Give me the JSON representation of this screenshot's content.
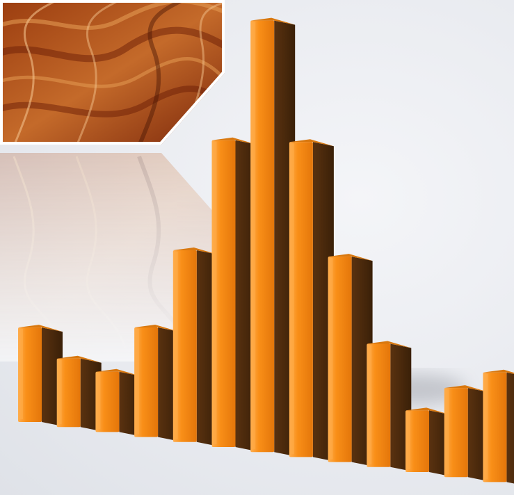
{
  "chart_data": {
    "type": "bar",
    "values": [
      138,
      100,
      88,
      160,
      280,
      448,
      630,
      460,
      300,
      180,
      90,
      130,
      160
    ],
    "colors": {
      "front": "#f58a12",
      "side": "#4a2a0c",
      "top": "#d9780f",
      "highlight": "#ffad4a",
      "texture_dark": "#6b1e06",
      "texture_mid": "#b5561c",
      "texture_light": "#e39a52"
    }
  }
}
